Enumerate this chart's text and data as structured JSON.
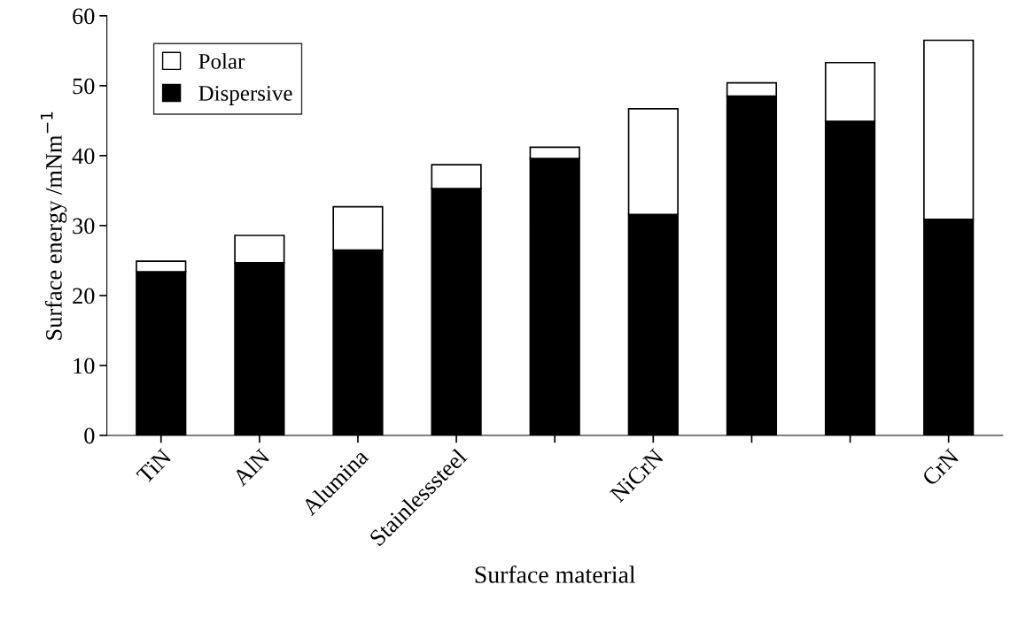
{
  "chart_data": {
    "type": "bar",
    "stacked": true,
    "xlabel": "Surface material",
    "ylabel": "Surface energy /mNm$^{−1}$",
    "categories": [
      "TiN",
      "AlN",
      "Alumina",
      "Stainlesssteel",
      null,
      "NiCrN",
      null,
      null,
      "CrN"
    ],
    "series": [
      {
        "name": "Dispersive",
        "color": "#000000",
        "values": [
          23.4,
          24.7,
          26.5,
          35.3,
          39.6,
          31.6,
          48.5,
          44.9,
          30.9
        ]
      },
      {
        "name": "Polar",
        "color": "#ffffff",
        "values": [
          1.5,
          3.9,
          6.2,
          3.4,
          1.6,
          15.1,
          1.9,
          8.4,
          25.6
        ]
      }
    ],
    "ylim": [
      0,
      60
    ],
    "yticks": [
      0,
      10,
      20,
      30,
      40,
      50,
      60
    ],
    "grid": false,
    "legend": "top left"
  }
}
